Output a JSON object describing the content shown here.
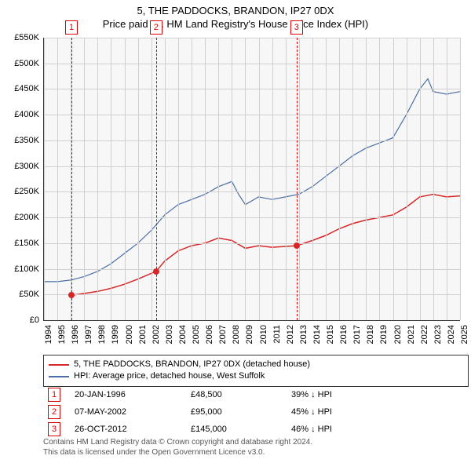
{
  "title": {
    "line1": "5, THE PADDOCKS, BRANDON, IP27 0DX",
    "line2": "Price paid vs. HM Land Registry's House Price Index (HPI)",
    "fontsize": 13
  },
  "axes": {
    "x_min_year": 1994,
    "x_max_year": 2025,
    "x_tick_years": [
      1994,
      1995,
      1996,
      1997,
      1998,
      1999,
      2000,
      2001,
      2002,
      2003,
      2004,
      2005,
      2006,
      2007,
      2008,
      2009,
      2010,
      2011,
      2012,
      2013,
      2014,
      2015,
      2016,
      2017,
      2018,
      2019,
      2020,
      2021,
      2022,
      2023,
      2024,
      2025
    ],
    "y_min": 0,
    "y_max": 550000,
    "y_tick_step": 50000,
    "y_tick_labels": [
      "£0",
      "£50K",
      "£100K",
      "£150K",
      "£200K",
      "£250K",
      "£300K",
      "£350K",
      "£400K",
      "£450K",
      "£500K",
      "£550K"
    ],
    "grid_color": "#cfcfcf",
    "plot_bg": "#f7f7f7",
    "label_fontsize": 11
  },
  "series": {
    "property": {
      "label": "5, THE PADDOCKS, BRANDON, IP27 0DX (detached house)",
      "color": "#d62728",
      "line_width": 1.5,
      "points": [
        {
          "year": 1996.05,
          "value": 48500
        },
        {
          "year": 1997.0,
          "value": 52000
        },
        {
          "year": 1998.0,
          "value": 56000
        },
        {
          "year": 1999.0,
          "value": 62000
        },
        {
          "year": 2000.0,
          "value": 70000
        },
        {
          "year": 2001.0,
          "value": 80000
        },
        {
          "year": 2002.35,
          "value": 95000
        },
        {
          "year": 2003.0,
          "value": 115000
        },
        {
          "year": 2004.0,
          "value": 135000
        },
        {
          "year": 2005.0,
          "value": 145000
        },
        {
          "year": 2006.0,
          "value": 150000
        },
        {
          "year": 2007.0,
          "value": 160000
        },
        {
          "year": 2008.0,
          "value": 155000
        },
        {
          "year": 2009.0,
          "value": 140000
        },
        {
          "year": 2010.0,
          "value": 145000
        },
        {
          "year": 2011.0,
          "value": 142000
        },
        {
          "year": 2012.82,
          "value": 145000
        },
        {
          "year": 2014.0,
          "value": 155000
        },
        {
          "year": 2015.0,
          "value": 165000
        },
        {
          "year": 2016.0,
          "value": 178000
        },
        {
          "year": 2017.0,
          "value": 188000
        },
        {
          "year": 2018.0,
          "value": 195000
        },
        {
          "year": 2019.0,
          "value": 200000
        },
        {
          "year": 2020.0,
          "value": 205000
        },
        {
          "year": 2021.0,
          "value": 220000
        },
        {
          "year": 2022.0,
          "value": 240000
        },
        {
          "year": 2023.0,
          "value": 245000
        },
        {
          "year": 2024.0,
          "value": 240000
        },
        {
          "year": 2025.0,
          "value": 242000
        }
      ]
    },
    "hpi": {
      "label": "HPI: Average price, detached house, West Suffolk",
      "color": "#4a6fa5",
      "line_width": 1.2,
      "points": [
        {
          "year": 1994.0,
          "value": 75000
        },
        {
          "year": 1995.0,
          "value": 75000
        },
        {
          "year": 1996.0,
          "value": 78000
        },
        {
          "year": 1997.0,
          "value": 85000
        },
        {
          "year": 1998.0,
          "value": 95000
        },
        {
          "year": 1999.0,
          "value": 110000
        },
        {
          "year": 2000.0,
          "value": 130000
        },
        {
          "year": 2001.0,
          "value": 150000
        },
        {
          "year": 2002.0,
          "value": 175000
        },
        {
          "year": 2003.0,
          "value": 205000
        },
        {
          "year": 2004.0,
          "value": 225000
        },
        {
          "year": 2005.0,
          "value": 235000
        },
        {
          "year": 2006.0,
          "value": 245000
        },
        {
          "year": 2007.0,
          "value": 260000
        },
        {
          "year": 2008.0,
          "value": 270000
        },
        {
          "year": 2008.5,
          "value": 245000
        },
        {
          "year": 2009.0,
          "value": 225000
        },
        {
          "year": 2010.0,
          "value": 240000
        },
        {
          "year": 2011.0,
          "value": 235000
        },
        {
          "year": 2012.0,
          "value": 240000
        },
        {
          "year": 2013.0,
          "value": 245000
        },
        {
          "year": 2014.0,
          "value": 260000
        },
        {
          "year": 2015.0,
          "value": 280000
        },
        {
          "year": 2016.0,
          "value": 300000
        },
        {
          "year": 2017.0,
          "value": 320000
        },
        {
          "year": 2018.0,
          "value": 335000
        },
        {
          "year": 2019.0,
          "value": 345000
        },
        {
          "year": 2020.0,
          "value": 355000
        },
        {
          "year": 2021.0,
          "value": 400000
        },
        {
          "year": 2022.0,
          "value": 450000
        },
        {
          "year": 2022.6,
          "value": 470000
        },
        {
          "year": 2023.0,
          "value": 445000
        },
        {
          "year": 2024.0,
          "value": 440000
        },
        {
          "year": 2025.0,
          "value": 445000
        }
      ]
    }
  },
  "markers": {
    "color": "#d62728",
    "point_radius": 4,
    "items": [
      {
        "num": "1",
        "year": 1996.05,
        "value": 48500
      },
      {
        "num": "2",
        "year": 2002.35,
        "value": 95000
      },
      {
        "num": "3",
        "year": 2012.82,
        "value": 145000
      }
    ]
  },
  "sales": [
    {
      "num": "1",
      "date": "20-JAN-1996",
      "price": "£48,500",
      "diff": "39% ↓ HPI"
    },
    {
      "num": "2",
      "date": "07-MAY-2002",
      "price": "£95,000",
      "diff": "45% ↓ HPI"
    },
    {
      "num": "3",
      "date": "26-OCT-2012",
      "price": "£145,000",
      "diff": "46% ↓ HPI"
    }
  ],
  "attribution": {
    "line1": "Contains HM Land Registry data © Crown copyright and database right 2024.",
    "line2": "This data is licensed under the Open Government Licence v3.0."
  }
}
